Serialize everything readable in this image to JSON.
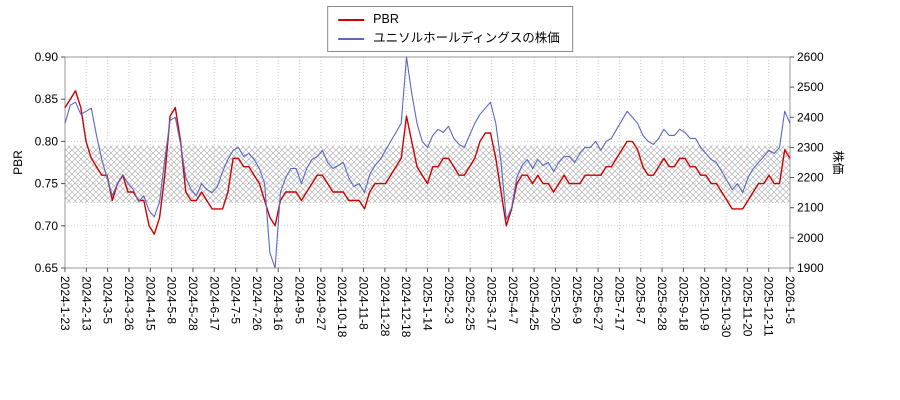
{
  "legend": {
    "items": [
      {
        "label": "PBR",
        "color": "#cc0000"
      },
      {
        "label": "ユニソルホールディングスの株価",
        "color": "#5a68c4"
      }
    ]
  },
  "chart_data": {
    "type": "line",
    "title": "",
    "x_axis": {
      "labels": [
        "2024-1-23",
        "2024-2-13",
        "2024-3-5",
        "2024-3-26",
        "2024-4-15",
        "2024-5-8",
        "2024-5-28",
        "2024-6-17",
        "2024-7-5",
        "2024-7-26",
        "2024-8-16",
        "2024-9-5",
        "2024-9-27",
        "2024-10-18",
        "2024-11-8",
        "2024-11-28",
        "2024-12-18",
        "2025-1-14",
        "2025-2-3",
        "2025-2-25",
        "2025-3-17",
        "2025-4-7",
        "2025-4-25",
        "2025-5-20",
        "2025-6-9",
        "2025-6-27",
        "2025-7-17",
        "2025-8-7",
        "2025-8-28",
        "2025-9-18",
        "2025-10-9",
        "2025-10-30",
        "2025-11-20",
        "2025-12-11",
        "2026-1-5"
      ],
      "note": "series values are evenly spaced across the full date range, 4 points per labelled interval"
    },
    "left_axis": {
      "label": "PBR",
      "min": 0.65,
      "max": 0.9,
      "ticks": [
        0.9,
        0.85,
        0.8,
        0.75,
        0.7,
        0.65
      ]
    },
    "right_axis": {
      "label": "株価",
      "min": 1900,
      "max": 2600,
      "ticks": [
        2600,
        2500,
        2400,
        2300,
        2200,
        2100,
        2000,
        1900
      ]
    },
    "band": {
      "axis": "left",
      "from": 0.727,
      "to": 0.795,
      "style": "crosshatch",
      "color": "#b4b4b4"
    },
    "grid": {
      "show": true,
      "color": "#cccccc",
      "style": "dotted"
    },
    "series": [
      {
        "name": "PBR",
        "axis": "left",
        "color": "#cc0000",
        "values": [
          0.84,
          0.85,
          0.86,
          0.84,
          0.8,
          0.78,
          0.77,
          0.76,
          0.76,
          0.73,
          0.75,
          0.76,
          0.74,
          0.74,
          0.73,
          0.73,
          0.7,
          0.69,
          0.71,
          0.76,
          0.83,
          0.84,
          0.8,
          0.74,
          0.73,
          0.73,
          0.74,
          0.73,
          0.72,
          0.72,
          0.72,
          0.74,
          0.78,
          0.78,
          0.77,
          0.77,
          0.76,
          0.75,
          0.73,
          0.71,
          0.7,
          0.73,
          0.74,
          0.74,
          0.74,
          0.73,
          0.74,
          0.75,
          0.76,
          0.76,
          0.75,
          0.74,
          0.74,
          0.74,
          0.73,
          0.73,
          0.73,
          0.72,
          0.74,
          0.75,
          0.75,
          0.75,
          0.76,
          0.77,
          0.78,
          0.83,
          0.8,
          0.77,
          0.76,
          0.75,
          0.77,
          0.77,
          0.78,
          0.78,
          0.77,
          0.76,
          0.76,
          0.77,
          0.78,
          0.8,
          0.81,
          0.81,
          0.78,
          0.74,
          0.7,
          0.72,
          0.75,
          0.76,
          0.76,
          0.75,
          0.76,
          0.75,
          0.75,
          0.74,
          0.75,
          0.76,
          0.75,
          0.75,
          0.75,
          0.76,
          0.76,
          0.76,
          0.76,
          0.77,
          0.77,
          0.78,
          0.79,
          0.8,
          0.8,
          0.79,
          0.77,
          0.76,
          0.76,
          0.77,
          0.78,
          0.77,
          0.77,
          0.78,
          0.78,
          0.77,
          0.77,
          0.76,
          0.76,
          0.75,
          0.75,
          0.74,
          0.73,
          0.72,
          0.72,
          0.72,
          0.73,
          0.74,
          0.75,
          0.75,
          0.76,
          0.75,
          0.75,
          0.79,
          0.78
        ]
      },
      {
        "name": "ユニソルホールディングスの株価",
        "axis": "right",
        "color": "#5a68c4",
        "values": [
          2380,
          2440,
          2450,
          2410,
          2420,
          2430,
          2340,
          2260,
          2200,
          2140,
          2180,
          2210,
          2180,
          2160,
          2120,
          2140,
          2090,
          2070,
          2120,
          2260,
          2390,
          2400,
          2310,
          2200,
          2160,
          2140,
          2180,
          2160,
          2150,
          2170,
          2220,
          2260,
          2290,
          2300,
          2270,
          2280,
          2260,
          2230,
          2180,
          1950,
          1900,
          2150,
          2200,
          2230,
          2230,
          2180,
          2230,
          2260,
          2270,
          2290,
          2250,
          2230,
          2240,
          2250,
          2200,
          2170,
          2180,
          2150,
          2210,
          2240,
          2260,
          2290,
          2320,
          2350,
          2380,
          2600,
          2480,
          2380,
          2320,
          2300,
          2340,
          2360,
          2350,
          2370,
          2330,
          2310,
          2300,
          2340,
          2380,
          2410,
          2430,
          2450,
          2380,
          2250,
          2060,
          2100,
          2200,
          2240,
          2260,
          2230,
          2260,
          2240,
          2250,
          2220,
          2250,
          2270,
          2270,
          2250,
          2280,
          2300,
          2300,
          2320,
          2290,
          2320,
          2330,
          2360,
          2390,
          2420,
          2400,
          2380,
          2340,
          2320,
          2310,
          2330,
          2360,
          2340,
          2340,
          2360,
          2350,
          2330,
          2330,
          2300,
          2280,
          2260,
          2250,
          2220,
          2190,
          2160,
          2180,
          2150,
          2200,
          2230,
          2250,
          2270,
          2290,
          2280,
          2300,
          2420,
          2380
        ]
      }
    ]
  }
}
